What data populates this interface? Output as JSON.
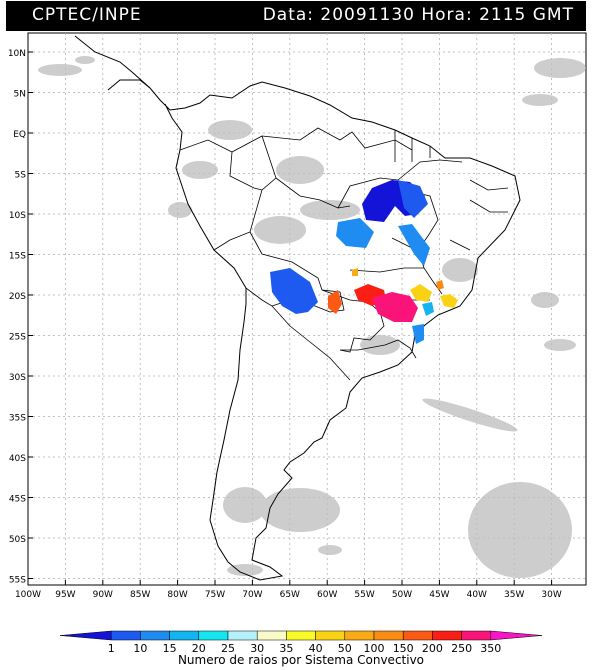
{
  "header": {
    "agency": "CPTEC/INPE",
    "date_label": "Data:",
    "date_value": "20091130",
    "hour_label": "Hora:",
    "hour_value": "2115 GMT"
  },
  "map": {
    "lat_labels": [
      "10N",
      "5N",
      "EQ",
      "5S",
      "10S",
      "15S",
      "20S",
      "25S",
      "30S",
      "35S",
      "40S",
      "45S",
      "50S",
      "55S"
    ],
    "lon_labels": [
      "100W",
      "95W",
      "90W",
      "85W",
      "80W",
      "75W",
      "70W",
      "65W",
      "60W",
      "55W",
      "50W",
      "45W",
      "40W",
      "35W",
      "30W"
    ]
  },
  "legend": {
    "ticks": [
      "1",
      "10",
      "15",
      "20",
      "25",
      "30",
      "35",
      "40",
      "50",
      "100",
      "150",
      "200",
      "250",
      "350"
    ],
    "colors": [
      "#1414d8",
      "#1e5af0",
      "#1e8cf0",
      "#14b4f0",
      "#14e6f0",
      "#b4f0fa",
      "#fafac8",
      "#fafa28",
      "#fad214",
      "#faaa14",
      "#fa8c14",
      "#fa5a14",
      "#fa1e14",
      "#fa147a",
      "#fa14c8"
    ],
    "title": "Numero de raios por Sistema Convectivo"
  }
}
